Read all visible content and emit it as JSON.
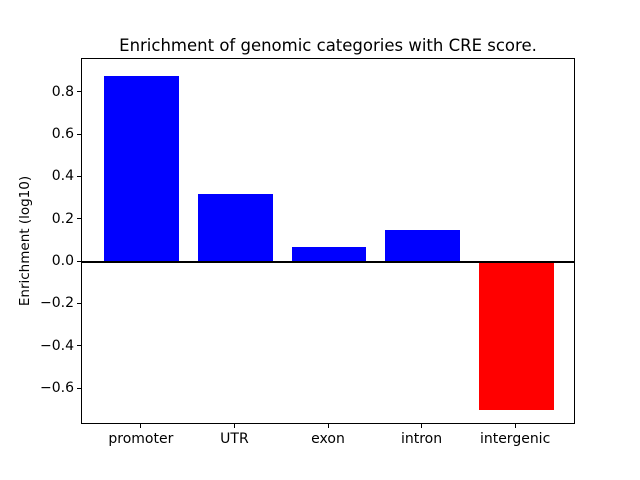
{
  "chart_data": {
    "type": "bar",
    "title": "Enrichment of genomic categories with CRE score.",
    "xlabel": "",
    "ylabel": "Enrichment (log10)",
    "categories": [
      "promoter",
      "UTR",
      "exon",
      "intron",
      "intergenic"
    ],
    "values": [
      0.88,
      0.32,
      0.07,
      0.15,
      -0.7
    ],
    "bar_colors": [
      "#0000ff",
      "#0000ff",
      "#0000ff",
      "#0000ff",
      "#ff0000"
    ],
    "positive_color": "#0000ff",
    "negative_color": "#ff0000",
    "ylim": [
      -0.77,
      0.96
    ],
    "xlim": [
      -0.64,
      4.64
    ],
    "yticks": [
      0.8,
      0.6,
      0.4,
      0.2,
      0.0,
      -0.2,
      -0.4,
      -0.6
    ],
    "ytick_labels": [
      "0.8",
      "0.6",
      "0.4",
      "0.2",
      "0.0",
      "−0.2",
      "−0.4",
      "−0.6"
    ],
    "bar_width_fraction": 0.8,
    "zero_line": true,
    "grid": false,
    "legend": "none",
    "background_color": "#ffffff",
    "frame_color": "#000000"
  }
}
